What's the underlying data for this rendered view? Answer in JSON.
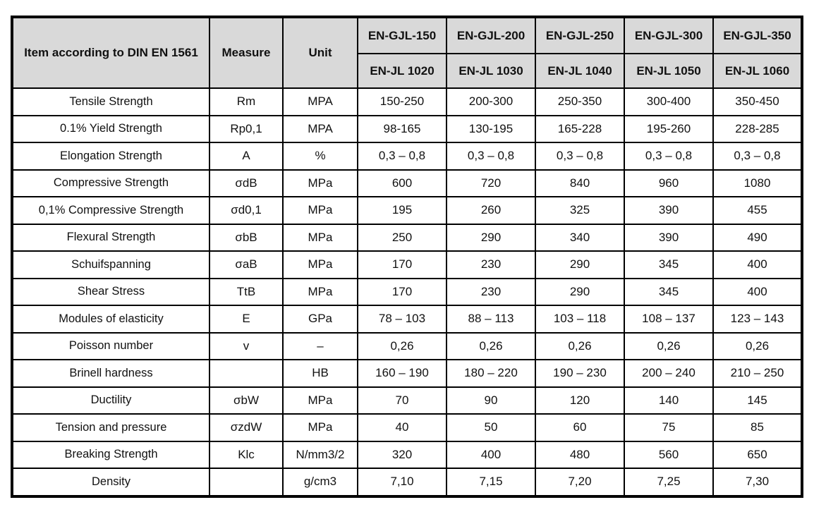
{
  "table": {
    "colors": {
      "header_bg": "#d9d9d9",
      "border": "#000000",
      "text": "#111111",
      "page_bg": "#ffffff"
    },
    "header": {
      "item": "Item according to DIN EN 1561",
      "measure": "Measure",
      "unit": "Unit",
      "grades": [
        {
          "grade": "EN-GJL-150",
          "code": "EN-JL 1020"
        },
        {
          "grade": "EN-GJL-200",
          "code": "EN-JL 1030"
        },
        {
          "grade": "EN-GJL-250",
          "code": "EN-JL 1040"
        },
        {
          "grade": "EN-GJL-300",
          "code": "EN-JL 1050"
        },
        {
          "grade": "EN-GJL-350",
          "code": "EN-JL 1060"
        }
      ]
    },
    "rows": [
      {
        "item": "Tensile Strength",
        "measure": "Rm",
        "unit": "MPA",
        "values": [
          "150-250",
          "200-300",
          "250-350",
          "300-400",
          "350-450"
        ]
      },
      {
        "item": "0.1% Yield Strength",
        "measure": "Rp0,1",
        "unit": "MPA",
        "values": [
          "98-165",
          "130-195",
          "165-228",
          "195-260",
          "228-285"
        ]
      },
      {
        "item": "Elongation Strength",
        "measure": "A",
        "unit": "%",
        "values": [
          "0,3 – 0,8",
          "0,3 – 0,8",
          "0,3 – 0,8",
          "0,3 – 0,8",
          "0,3 – 0,8"
        ]
      },
      {
        "item": "Compressive Strength",
        "measure": "σdB",
        "unit": "MPa",
        "values": [
          "600",
          "720",
          "840",
          "960",
          "1080"
        ]
      },
      {
        "item": "0,1% Compressive Strength",
        "measure": "σd0,1",
        "unit": "MPa",
        "values": [
          "195",
          "260",
          "325",
          "390",
          "455"
        ]
      },
      {
        "item": "Flexural Strength",
        "measure": "σbB",
        "unit": "MPa",
        "values": [
          "250",
          "290",
          "340",
          "390",
          "490"
        ]
      },
      {
        "item": "Schuifspanning",
        "measure": "σaB",
        "unit": "MPa",
        "values": [
          "170",
          "230",
          "290",
          "345",
          "400"
        ]
      },
      {
        "item": "Shear Stress",
        "measure": "TtB",
        "unit": "MPa",
        "values": [
          "170",
          "230",
          "290",
          "345",
          "400"
        ]
      },
      {
        "item": "Modules of elasticity",
        "measure": "E",
        "unit": "GPa",
        "values": [
          "78 – 103",
          "88 – 113",
          "103 – 118",
          "108 – 137",
          "123 – 143"
        ]
      },
      {
        "item": "Poisson number",
        "measure": "v",
        "unit": "–",
        "values": [
          "0,26",
          "0,26",
          "0,26",
          "0,26",
          "0,26"
        ]
      },
      {
        "item": "Brinell hardness",
        "measure": "",
        "unit": "HB",
        "values": [
          "160 – 190",
          "180 – 220",
          "190 – 230",
          "200 – 240",
          "210 – 250"
        ]
      },
      {
        "item": "Ductility",
        "measure": "σbW",
        "unit": "MPa",
        "values": [
          "70",
          "90",
          "120",
          "140",
          "145"
        ]
      },
      {
        "item": "Tension and pressure",
        "measure": "σzdW",
        "unit": "MPa",
        "values": [
          "40",
          "50",
          "60",
          "75",
          "85"
        ]
      },
      {
        "item": "Breaking Strength",
        "measure": "Klc",
        "unit": "N/mm3/2",
        "values": [
          "320",
          "400",
          "480",
          "560",
          "650"
        ]
      },
      {
        "item": "Density",
        "measure": "",
        "unit": "g/cm3",
        "values": [
          "7,10",
          "7,15",
          "7,20",
          "7,25",
          "7,30"
        ]
      }
    ]
  }
}
